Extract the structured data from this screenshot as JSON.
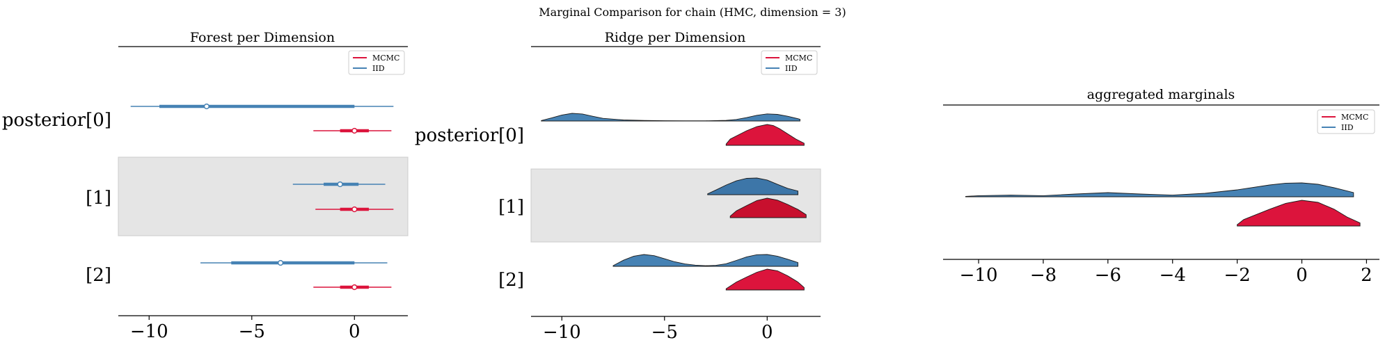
{
  "suptitle": "Marginal Comparison for chain (HMC, dimension = 3)",
  "colors": {
    "mcmc": "#dc143c",
    "iid": "#4682b4",
    "band": "#e5e5e5"
  },
  "legend": {
    "entries": [
      {
        "label": "MCMC",
        "color": "#dc143c"
      },
      {
        "label": "IID",
        "color": "#4682b4"
      }
    ],
    "placement": "upper right"
  },
  "chart_data": [
    {
      "type": "forest",
      "title": "Forest per Dimension",
      "rows": [
        "posterior[0]",
        "[1]",
        "[2]"
      ],
      "xlim": [
        -11.5,
        2.6
      ],
      "xticks": [
        -10,
        -5,
        0
      ],
      "xtick_labels": [
        "−10",
        "−5",
        "0"
      ],
      "series": [
        {
          "name": "IID",
          "entries": [
            {
              "row": 0,
              "min": -10.9,
              "q25": -9.5,
              "median": -7.2,
              "q75": 0.0,
              "max": 1.9
            },
            {
              "row": 1,
              "min": -3.0,
              "q25": -1.5,
              "median": -0.7,
              "q75": 0.2,
              "max": 1.5
            },
            {
              "row": 2,
              "min": -7.5,
              "q25": -6.0,
              "median": -3.6,
              "q75": 0.0,
              "max": 1.6
            }
          ]
        },
        {
          "name": "MCMC",
          "entries": [
            {
              "row": 0,
              "min": -2.0,
              "q25": -0.7,
              "median": 0.0,
              "q75": 0.7,
              "max": 1.8
            },
            {
              "row": 1,
              "min": -1.9,
              "q25": -0.7,
              "median": 0.0,
              "q75": 0.7,
              "max": 1.9
            },
            {
              "row": 2,
              "min": -2.0,
              "q25": -0.7,
              "median": 0.0,
              "q75": 0.7,
              "max": 1.8
            }
          ]
        }
      ]
    },
    {
      "type": "ridge",
      "title": "Ridge per Dimension",
      "rows": [
        "posterior[0]",
        "[1]",
        "[2]"
      ],
      "xlim": [
        -11.5,
        2.6
      ],
      "xticks": [
        -10,
        -5,
        0
      ],
      "xtick_labels": [
        "−10",
        "−5",
        "0"
      ],
      "series": [
        {
          "name": "IID",
          "densities": [
            {
              "row": 0,
              "x": [
                -11.0,
                -10.5,
                -10.0,
                -9.5,
                -9.0,
                -8.5,
                -8.0,
                -7.0,
                -6.0,
                -5.0,
                -4.0,
                -3.0,
                -2.0,
                -1.5,
                -1.0,
                -0.5,
                0.0,
                0.5,
                1.0,
                1.5,
                1.6
              ],
              "y": [
                0.06,
                0.4,
                0.78,
                1.0,
                0.92,
                0.62,
                0.35,
                0.14,
                0.07,
                0.04,
                0.03,
                0.03,
                0.08,
                0.2,
                0.45,
                0.75,
                0.93,
                0.86,
                0.62,
                0.3,
                0.22
              ]
            },
            {
              "row": 1,
              "x": [
                -2.9,
                -2.5,
                -2.0,
                -1.5,
                -1.0,
                -0.5,
                0.0,
                0.5,
                1.0,
                1.5
              ],
              "y": [
                0.05,
                0.28,
                0.58,
                0.83,
                0.98,
                1.0,
                0.88,
                0.62,
                0.38,
                0.22
              ]
            },
            {
              "row": 2,
              "x": [
                -7.5,
                -7.0,
                -6.5,
                -6.0,
                -5.5,
                -5.0,
                -4.5,
                -4.0,
                -3.5,
                -3.0,
                -2.5,
                -2.0,
                -1.5,
                -1.0,
                -0.5,
                0.0,
                0.5,
                1.0,
                1.5
              ],
              "y": [
                0.06,
                0.52,
                0.86,
                1.0,
                0.9,
                0.64,
                0.38,
                0.2,
                0.1,
                0.05,
                0.08,
                0.22,
                0.5,
                0.8,
                0.98,
                1.0,
                0.86,
                0.6,
                0.32
              ]
            }
          ]
        },
        {
          "name": "MCMC",
          "densities": [
            {
              "row": 0,
              "x": [
                -2.0,
                -1.8,
                -1.5,
                -1.0,
                -0.5,
                0.0,
                0.3,
                0.6,
                1.0,
                1.4,
                1.8
              ],
              "y": [
                0.06,
                0.3,
                0.45,
                0.7,
                0.9,
                1.0,
                0.95,
                0.8,
                0.55,
                0.3,
                0.1
              ]
            },
            {
              "row": 1,
              "x": [
                -1.8,
                -1.5,
                -1.0,
                -0.5,
                0.0,
                0.5,
                1.0,
                1.5,
                1.9
              ],
              "y": [
                0.08,
                0.35,
                0.62,
                0.88,
                1.0,
                0.9,
                0.68,
                0.42,
                0.15
              ]
            },
            {
              "row": 2,
              "x": [
                -2.0,
                -1.5,
                -1.0,
                -0.5,
                0.0,
                0.5,
                1.0,
                1.5,
                1.8
              ],
              "y": [
                0.06,
                0.38,
                0.62,
                0.85,
                1.0,
                0.92,
                0.68,
                0.38,
                0.12
              ]
            }
          ]
        }
      ]
    },
    {
      "type": "ridge",
      "title": "aggregated marginals",
      "xlim": [
        -11.1,
        2.4
      ],
      "xticks": [
        -10,
        -8,
        -6,
        -4,
        -2,
        0,
        2
      ],
      "xtick_labels": [
        "−10",
        "−8",
        "−6",
        "−4",
        "−2",
        "0",
        "2"
      ],
      "series": [
        {
          "name": "IID",
          "x": [
            -10.4,
            -10.0,
            -9.0,
            -8.0,
            -7.0,
            -6.0,
            -5.0,
            -4.0,
            -3.0,
            -2.0,
            -1.0,
            -0.5,
            0.0,
            0.5,
            1.0,
            1.6
          ],
          "y": [
            0.03,
            0.08,
            0.12,
            0.08,
            0.2,
            0.3,
            0.2,
            0.12,
            0.25,
            0.5,
            0.85,
            0.98,
            1.0,
            0.9,
            0.65,
            0.3
          ]
        },
        {
          "name": "MCMC",
          "x": [
            -2.0,
            -1.8,
            -1.5,
            -1.0,
            -0.5,
            0.0,
            0.5,
            1.0,
            1.4,
            1.8
          ],
          "y": [
            0.05,
            0.25,
            0.4,
            0.65,
            0.88,
            1.0,
            0.92,
            0.65,
            0.35,
            0.12
          ]
        }
      ]
    }
  ]
}
